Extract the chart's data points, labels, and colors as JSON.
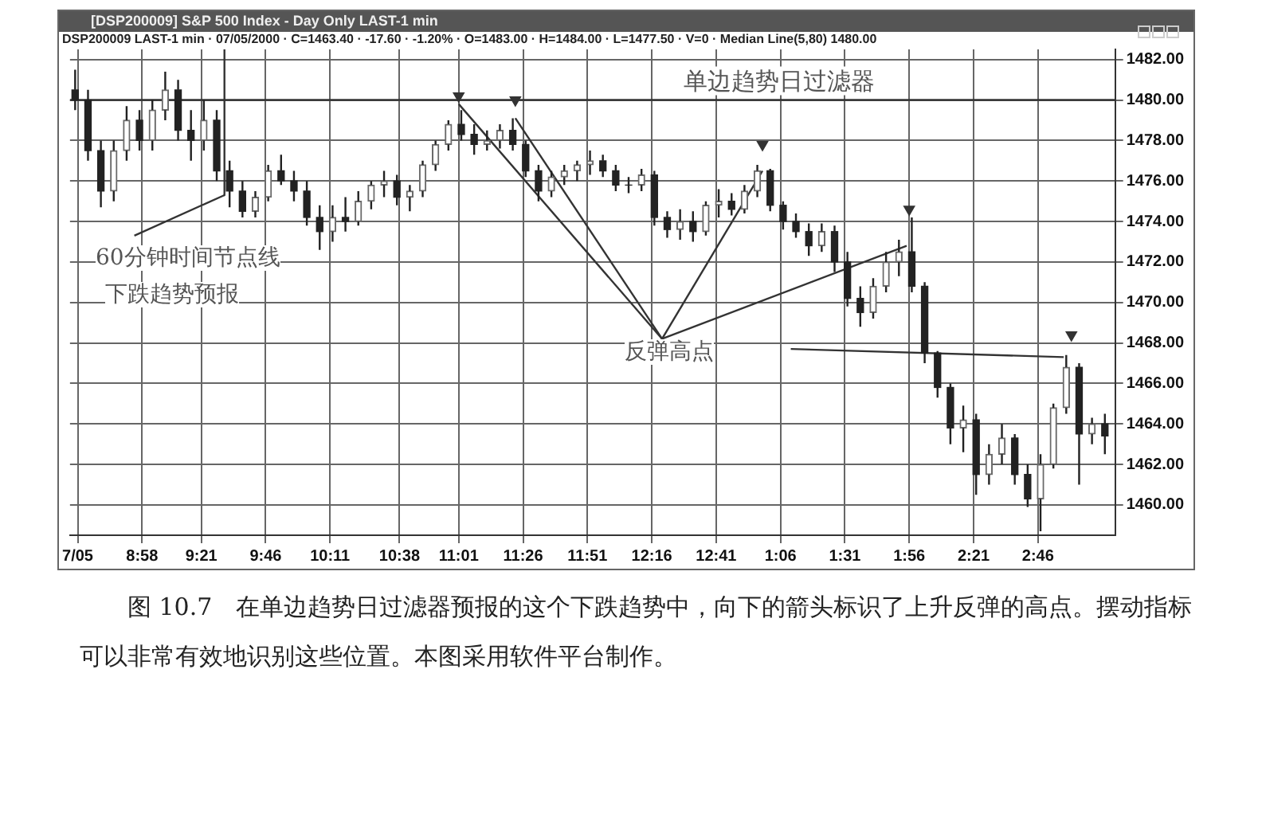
{
  "chart_data": {
    "type": "candlestick",
    "title": "[DSP200009] S&P 500 Index - Day Only LAST-1 min",
    "subtitle": "DSP200009 LAST-1 min · 07/05/2000 · C=1463.40 · -17.60 · -1.20% · O=1483.00 · H=1484.00 · L=1477.50 · V=0 · Median Line(5,80)   1480.00",
    "color": "#222222",
    "colors": [
      "#222222",
      "#222222",
      "#222222",
      "#6a6a6a",
      "#6a6a6a",
      "#222222",
      "#6a6a6a",
      "#6a6a6a",
      "#222222",
      "#222222",
      "#6a6a6a",
      "#222222",
      "#222222",
      "#222222",
      "#6a6a6a",
      "#6a6a6a",
      "#222222",
      "#222222",
      "#222222",
      "#222222",
      "#6a6a6a",
      "#222222",
      "#6a6a6a",
      "#6a6a6a",
      "#6a6a6a",
      "#222222",
      "#6a6a6a",
      "#6a6a6a",
      "#6a6a6a",
      "#6a6a6a",
      "#222222",
      "#222222",
      "#6a6a6a",
      "#6a6a6a",
      "#222222",
      "#222222",
      "#222222",
      "#6a6a6a",
      "#6a6a6a",
      "#6a6a6a",
      "#6a6a6a",
      "#222222",
      "#222222",
      "#222222",
      "#6a6a6a",
      "#222222",
      "#222222",
      "#6a6a6a",
      "#222222",
      "#6a6a6a",
      "#6a6a6a",
      "#222222",
      "#6a6a6a",
      "#6a6a6a",
      "#222222",
      "#222222",
      "#222222",
      "#222222",
      "#6a6a6a",
      "#222222",
      "#222222",
      "#222222",
      "#6a6a6a",
      "#6a6a6a",
      "#6a6a6a",
      "#222222",
      "#222222",
      "#222222",
      "#222222",
      "#6a6a6a",
      "#222222",
      "#6a6a6a",
      "#6a6a6a",
      "#222222",
      "#222222",
      "#6a6a6a",
      "#6a6a6a",
      "#6a6a6a",
      "#222222",
      "#6a6a6a",
      "#222222"
    ],
    "x": [
      "2000-07-05T08:32",
      "2000-07-05T08:37",
      "2000-07-05T08:42",
      "2000-07-05T08:47",
      "2000-07-05T08:52",
      "2000-07-05T08:57",
      "2000-07-05T09:02",
      "2000-07-05T09:07",
      "2000-07-05T09:12",
      "2000-07-05T09:17",
      "2000-07-05T09:22",
      "2000-07-05T09:27",
      "2000-07-05T09:32",
      "2000-07-05T09:37",
      "2000-07-05T09:42",
      "2000-07-05T09:47",
      "2000-07-05T09:52",
      "2000-07-05T09:57",
      "2000-07-05T10:02",
      "2000-07-05T10:07",
      "2000-07-05T10:12",
      "2000-07-05T10:17",
      "2000-07-05T10:22",
      "2000-07-05T10:27",
      "2000-07-05T10:32",
      "2000-07-05T10:37",
      "2000-07-05T10:42",
      "2000-07-05T10:47",
      "2000-07-05T10:52",
      "2000-07-05T10:57",
      "2000-07-05T11:02",
      "2000-07-05T11:07",
      "2000-07-05T11:12",
      "2000-07-05T11:17",
      "2000-07-05T11:22",
      "2000-07-05T11:27",
      "2000-07-05T11:32",
      "2000-07-05T11:37",
      "2000-07-05T11:42",
      "2000-07-05T11:47",
      "2000-07-05T11:52",
      "2000-07-05T11:57",
      "2000-07-05T12:02",
      "2000-07-05T12:07",
      "2000-07-05T12:12",
      "2000-07-05T12:17",
      "2000-07-05T12:22",
      "2000-07-05T12:27",
      "2000-07-05T12:32",
      "2000-07-05T12:37",
      "2000-07-05T12:42",
      "2000-07-05T12:47",
      "2000-07-05T12:52",
      "2000-07-05T12:57",
      "2000-07-05T13:02",
      "2000-07-05T13:07",
      "2000-07-05T13:12",
      "2000-07-05T13:17",
      "2000-07-05T13:22",
      "2000-07-05T13:27",
      "2000-07-05T13:32",
      "2000-07-05T13:37",
      "2000-07-05T13:42",
      "2000-07-05T13:47",
      "2000-07-05T13:52",
      "2000-07-05T13:57",
      "2000-07-05T14:02",
      "2000-07-05T14:07",
      "2000-07-05T14:12",
      "2000-07-05T14:17",
      "2000-07-05T14:22",
      "2000-07-05T14:27",
      "2000-07-05T14:32",
      "2000-07-05T14:37",
      "2000-07-05T14:42",
      "2000-07-05T14:47",
      "2000-07-05T14:52",
      "2000-07-05T14:57",
      "2000-07-05T15:02",
      "2000-07-05T15:07",
      "2000-07-05T15:12"
    ],
    "ohlc": [
      [
        1480.5,
        1481.5,
        1479.5,
        1480
      ],
      [
        1480,
        1480.5,
        1477,
        1477.5
      ],
      [
        1477.5,
        1478,
        1474.7,
        1475.5
      ],
      [
        1475.5,
        1478,
        1475,
        1477.5
      ],
      [
        1477.5,
        1479.7,
        1477,
        1479
      ],
      [
        1479,
        1479.5,
        1477.5,
        1478
      ],
      [
        1478,
        1480,
        1477.5,
        1479.5
      ],
      [
        1479.5,
        1481.4,
        1479,
        1480.5
      ],
      [
        1480.5,
        1481,
        1478,
        1478.5
      ],
      [
        1478.5,
        1479.5,
        1477,
        1478
      ],
      [
        1478,
        1480,
        1477.5,
        1479
      ],
      [
        1479,
        1479.5,
        1476,
        1476.5
      ],
      [
        1476.5,
        1477,
        1474.7,
        1475.5
      ],
      [
        1475.5,
        1476,
        1474.2,
        1474.5
      ],
      [
        1474.5,
        1475.5,
        1474.2,
        1475.2
      ],
      [
        1475.2,
        1476.8,
        1475,
        1476.5
      ],
      [
        1476.5,
        1477.3,
        1475.8,
        1476
      ],
      [
        1476,
        1476.5,
        1475,
        1475.5
      ],
      [
        1475.5,
        1476,
        1473.8,
        1474.2
      ],
      [
        1474.2,
        1474.8,
        1472.6,
        1473.5
      ],
      [
        1473.5,
        1474.8,
        1473,
        1474.2
      ],
      [
        1474.2,
        1475.2,
        1473.5,
        1474
      ],
      [
        1474,
        1475.5,
        1473.8,
        1475
      ],
      [
        1475,
        1476,
        1474.6,
        1475.8
      ],
      [
        1475.8,
        1476.5,
        1475.2,
        1476
      ],
      [
        1476,
        1476.3,
        1474.8,
        1475.2
      ],
      [
        1475.2,
        1475.8,
        1474.5,
        1475.5
      ],
      [
        1475.5,
        1477,
        1475.2,
        1476.8
      ],
      [
        1476.8,
        1478,
        1476.5,
        1477.8
      ],
      [
        1477.8,
        1479,
        1477.5,
        1478.8
      ],
      [
        1478.8,
        1479.5,
        1478,
        1478.3
      ],
      [
        1478.3,
        1478.8,
        1477.3,
        1477.8
      ],
      [
        1477.8,
        1478.5,
        1477.5,
        1478
      ],
      [
        1478,
        1478.8,
        1477.6,
        1478.5
      ],
      [
        1478.5,
        1479.1,
        1477.5,
        1477.8
      ],
      [
        1477.8,
        1478,
        1476.2,
        1476.5
      ],
      [
        1476.5,
        1476.8,
        1475,
        1475.5
      ],
      [
        1475.5,
        1476.5,
        1475.2,
        1476.2
      ],
      [
        1476.2,
        1476.8,
        1475.8,
        1476.5
      ],
      [
        1476.5,
        1477,
        1476,
        1476.8
      ],
      [
        1476.8,
        1477.5,
        1476.3,
        1477
      ],
      [
        1477,
        1477.3,
        1476.2,
        1476.5
      ],
      [
        1476.5,
        1476.8,
        1475.5,
        1475.8
      ],
      [
        1475.8,
        1476.2,
        1475.4,
        1475.8
      ],
      [
        1475.8,
        1476.6,
        1475.5,
        1476.3
      ],
      [
        1476.3,
        1476.5,
        1473.8,
        1474.2
      ],
      [
        1474.2,
        1474.5,
        1473.2,
        1473.6
      ],
      [
        1473.6,
        1474.6,
        1473.1,
        1474
      ],
      [
        1474,
        1474.5,
        1473,
        1473.5
      ],
      [
        1473.5,
        1475,
        1473.3,
        1474.8
      ],
      [
        1474.8,
        1475.6,
        1474.2,
        1475
      ],
      [
        1475,
        1475.4,
        1474.3,
        1474.6
      ],
      [
        1474.6,
        1475.8,
        1474.4,
        1475.5
      ],
      [
        1475.5,
        1476.8,
        1475.2,
        1476.5
      ],
      [
        1476.5,
        1476.6,
        1474.5,
        1474.8
      ],
      [
        1474.8,
        1475,
        1473.6,
        1474
      ],
      [
        1474,
        1474.4,
        1473.2,
        1473.5
      ],
      [
        1473.5,
        1473.9,
        1472.3,
        1472.8
      ],
      [
        1472.8,
        1473.9,
        1472.5,
        1473.5
      ],
      [
        1473.5,
        1473.8,
        1471.5,
        1472
      ],
      [
        1472,
        1472.5,
        1469.8,
        1470.2
      ],
      [
        1470.2,
        1470.8,
        1468.8,
        1469.5
      ],
      [
        1469.5,
        1471.2,
        1469.2,
        1470.8
      ],
      [
        1470.8,
        1472.5,
        1470.5,
        1472
      ],
      [
        1472,
        1473.1,
        1471.3,
        1472.5
      ],
      [
        1472.5,
        1474.2,
        1470.5,
        1470.8
      ],
      [
        1470.8,
        1471,
        1467,
        1467.5
      ],
      [
        1467.5,
        1467.6,
        1465.3,
        1465.8
      ],
      [
        1465.8,
        1466,
        1463,
        1463.8
      ],
      [
        1463.8,
        1464.9,
        1462.6,
        1464.2
      ],
      [
        1464.2,
        1464.5,
        1460.5,
        1461.5
      ],
      [
        1461.5,
        1463,
        1461,
        1462.5
      ],
      [
        1462.5,
        1464,
        1462,
        1463.3
      ],
      [
        1463.3,
        1463.5,
        1461,
        1461.5
      ],
      [
        1461.5,
        1462,
        1459.9,
        1460.3
      ],
      [
        1460.3,
        1462.5,
        1458.7,
        1462
      ],
      [
        1462,
        1465,
        1461.8,
        1464.8
      ],
      [
        1464.8,
        1467.4,
        1464.5,
        1466.8
      ],
      [
        1466.8,
        1467,
        1461,
        1463.5
      ],
      [
        1463.5,
        1464.3,
        1463,
        1464
      ],
      [
        1464,
        1464.5,
        1462.5,
        1463.4
      ]
    ],
    "series": [
      {
        "type": "line",
        "color": "#333333",
        "x": [
          "2000-07-05T11:01",
          "2000-07-05T12:20"
        ],
        "values": [
          1479.8,
          1468.2
        ]
      },
      {
        "type": "line",
        "color": "#333333",
        "x": [
          "2000-07-05T11:23",
          "2000-07-05T12:20"
        ],
        "values": [
          1479.1,
          1468.2
        ]
      },
      {
        "type": "line",
        "color": "#333333",
        "x": [
          "2000-07-05T12:20",
          "2000-07-05T12:59"
        ],
        "values": [
          1468.2,
          1476.5
        ]
      },
      {
        "type": "line",
        "color": "#333333",
        "x": [
          "2000-07-05T12:20",
          "2000-07-05T13:55"
        ],
        "values": [
          1468.2,
          1472.8
        ]
      },
      {
        "type": "line",
        "color": "#333333",
        "x": [
          "2000-07-05T13:10",
          "2000-07-05T14:56"
        ],
        "values": [
          1467.7,
          1467.3
        ]
      },
      {
        "type": "line",
        "color": "#333333",
        "x": [
          "2000-07-05T09:30",
          "2000-07-05T09:30"
        ],
        "values": [
          1482.5,
          1475.3
        ]
      },
      {
        "type": "line",
        "color": "#333333",
        "x": [
          "2000-07-05T08:55",
          "2000-07-05T09:30"
        ],
        "values": [
          1473.3,
          1475.3
        ]
      },
      {
        "type": "scatter",
        "color": "#333333",
        "marker": "triangle",
        "x": [
          "2000-07-05T11:01",
          "2000-07-05T11:23",
          "2000-07-05T12:59",
          "2000-07-05T13:56",
          "2000-07-05T14:59"
        ],
        "values": [
          1480.2,
          1480,
          1477.8,
          1474.6,
          1468.4
        ]
      }
    ],
    "ref_lines": [
      {
        "axis": "y",
        "value": 1480,
        "label": "单边趋势日过滤器",
        "color": "#333333"
      }
    ],
    "annotations": [
      "60分钟时间节点线",
      "下跌趋势预报",
      "反弹高点",
      "图 10.7　在单边趋势日过滤器预报的这个下跌趋势中，向下的箭头标识了上升反弹的高点。摆动指标可以非常有效地识别这些位置。本图采用软件平台制作。"
    ],
    "xlim": [
      "2000-07-05T08:30",
      "2000-07-05T15:16"
    ],
    "xticks": [
      {
        "value": "2000-07-05T08:33",
        "label": "7/05"
      },
      {
        "value": "2000-07-05T08:58",
        "label": "8:58"
      },
      {
        "value": "2000-07-05T09:21",
        "label": "9:21"
      },
      {
        "value": "2000-07-05T09:46",
        "label": "9:46"
      },
      {
        "value": "2000-07-05T10:11",
        "label": "10:11"
      },
      {
        "value": "2000-07-05T10:38",
        "label": "10:38"
      },
      {
        "value": "2000-07-05T11:01",
        "label": "11:01"
      },
      {
        "value": "2000-07-05T11:26",
        "label": "11:26"
      },
      {
        "value": "2000-07-05T11:51",
        "label": "11:51"
      },
      {
        "value": "2000-07-05T12:16",
        "label": "12:16"
      },
      {
        "value": "2000-07-05T12:41",
        "label": "12:41"
      },
      {
        "value": "2000-07-05T13:06",
        "label": "1:06"
      },
      {
        "value": "2000-07-05T13:31",
        "label": "1:31"
      },
      {
        "value": "2000-07-05T13:56",
        "label": "1:56"
      },
      {
        "value": "2000-07-05T14:21",
        "label": "2:21"
      },
      {
        "value": "2000-07-05T14:46",
        "label": "2:46"
      }
    ],
    "ylim": [
      1458.5,
      1482.5
    ],
    "yticks": [
      {
        "value": 1460,
        "label": "1460.00"
      },
      {
        "value": 1462,
        "label": "1462.00"
      },
      {
        "value": 1464,
        "label": "1464.00"
      },
      {
        "value": 1466,
        "label": "1466.00"
      },
      {
        "value": 1468,
        "label": "1468.00"
      },
      {
        "value": 1470,
        "label": "1470.00"
      },
      {
        "value": 1472,
        "label": "1472.00"
      },
      {
        "value": 1474,
        "label": "1474.00"
      },
      {
        "value": 1476,
        "label": "1476.00"
      },
      {
        "value": 1478,
        "label": "1478.00"
      },
      {
        "value": 1480,
        "label": "1480.00"
      },
      {
        "value": 1482,
        "label": "1482.00"
      }
    ],
    "grid": true,
    "legend": false
  }
}
